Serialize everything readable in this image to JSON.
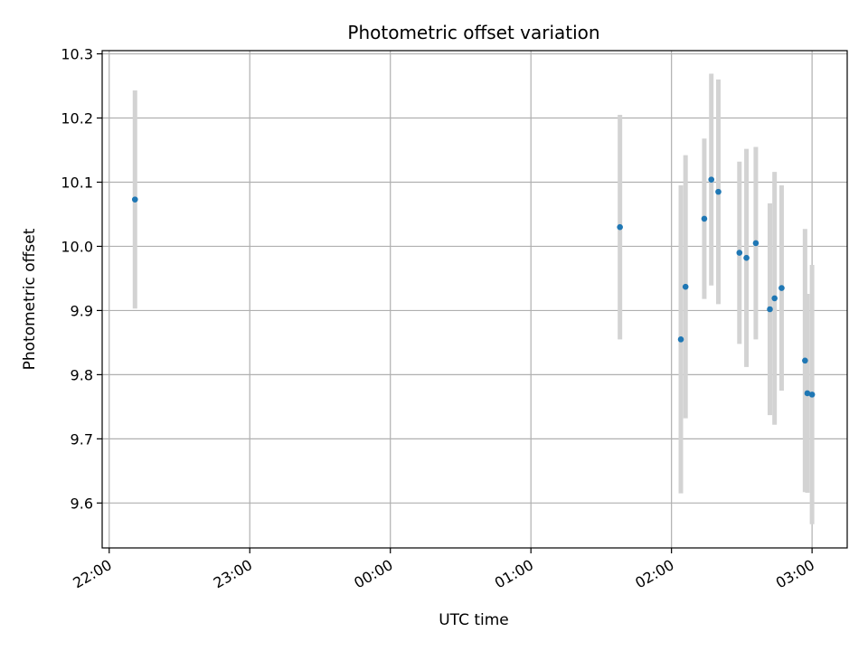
{
  "chart_data": {
    "type": "scatter",
    "title": "Photometric offset variation",
    "xlabel": "UTC time",
    "ylabel": "Photometric offset",
    "x_axis_kind": "time",
    "xlim": [
      "21:57",
      "03:15"
    ],
    "ylim": [
      9.53,
      10.305
    ],
    "x_ticks": [
      "22:00",
      "23:00",
      "00:00",
      "01:00",
      "02:00",
      "03:00"
    ],
    "y_ticks": [
      9.6,
      9.7,
      9.8,
      9.9,
      10.0,
      10.1,
      10.2,
      10.3
    ],
    "grid": true,
    "legend": "none",
    "colors": {
      "marker": "#1f77b4",
      "errorbar": "#d3d3d3",
      "grid": "#b0b0b0"
    },
    "points": [
      {
        "x": "22:11",
        "y": 10.073,
        "err": 0.17
      },
      {
        "x": "01:38",
        "y": 10.03,
        "err": 0.175
      },
      {
        "x": "02:04",
        "y": 9.855,
        "err": 0.24
      },
      {
        "x": "02:06",
        "y": 9.937,
        "err": 0.205
      },
      {
        "x": "02:14",
        "y": 10.043,
        "err": 0.125
      },
      {
        "x": "02:17",
        "y": 10.104,
        "err": 0.165
      },
      {
        "x": "02:20",
        "y": 10.085,
        "err": 0.175
      },
      {
        "x": "02:29",
        "y": 9.99,
        "err": 0.142
      },
      {
        "x": "02:32",
        "y": 9.982,
        "err": 0.17
      },
      {
        "x": "02:36",
        "y": 10.005,
        "err": 0.15
      },
      {
        "x": "02:42",
        "y": 9.902,
        "err": 0.165
      },
      {
        "x": "02:44",
        "y": 9.919,
        "err": 0.197
      },
      {
        "x": "02:47",
        "y": 9.935,
        "err": 0.16
      },
      {
        "x": "02:57",
        "y": 9.822,
        "err": 0.205
      },
      {
        "x": "02:58",
        "y": 9.771,
        "err": 0.155
      },
      {
        "x": "03:00",
        "y": 9.769,
        "err": 0.202
      }
    ]
  }
}
